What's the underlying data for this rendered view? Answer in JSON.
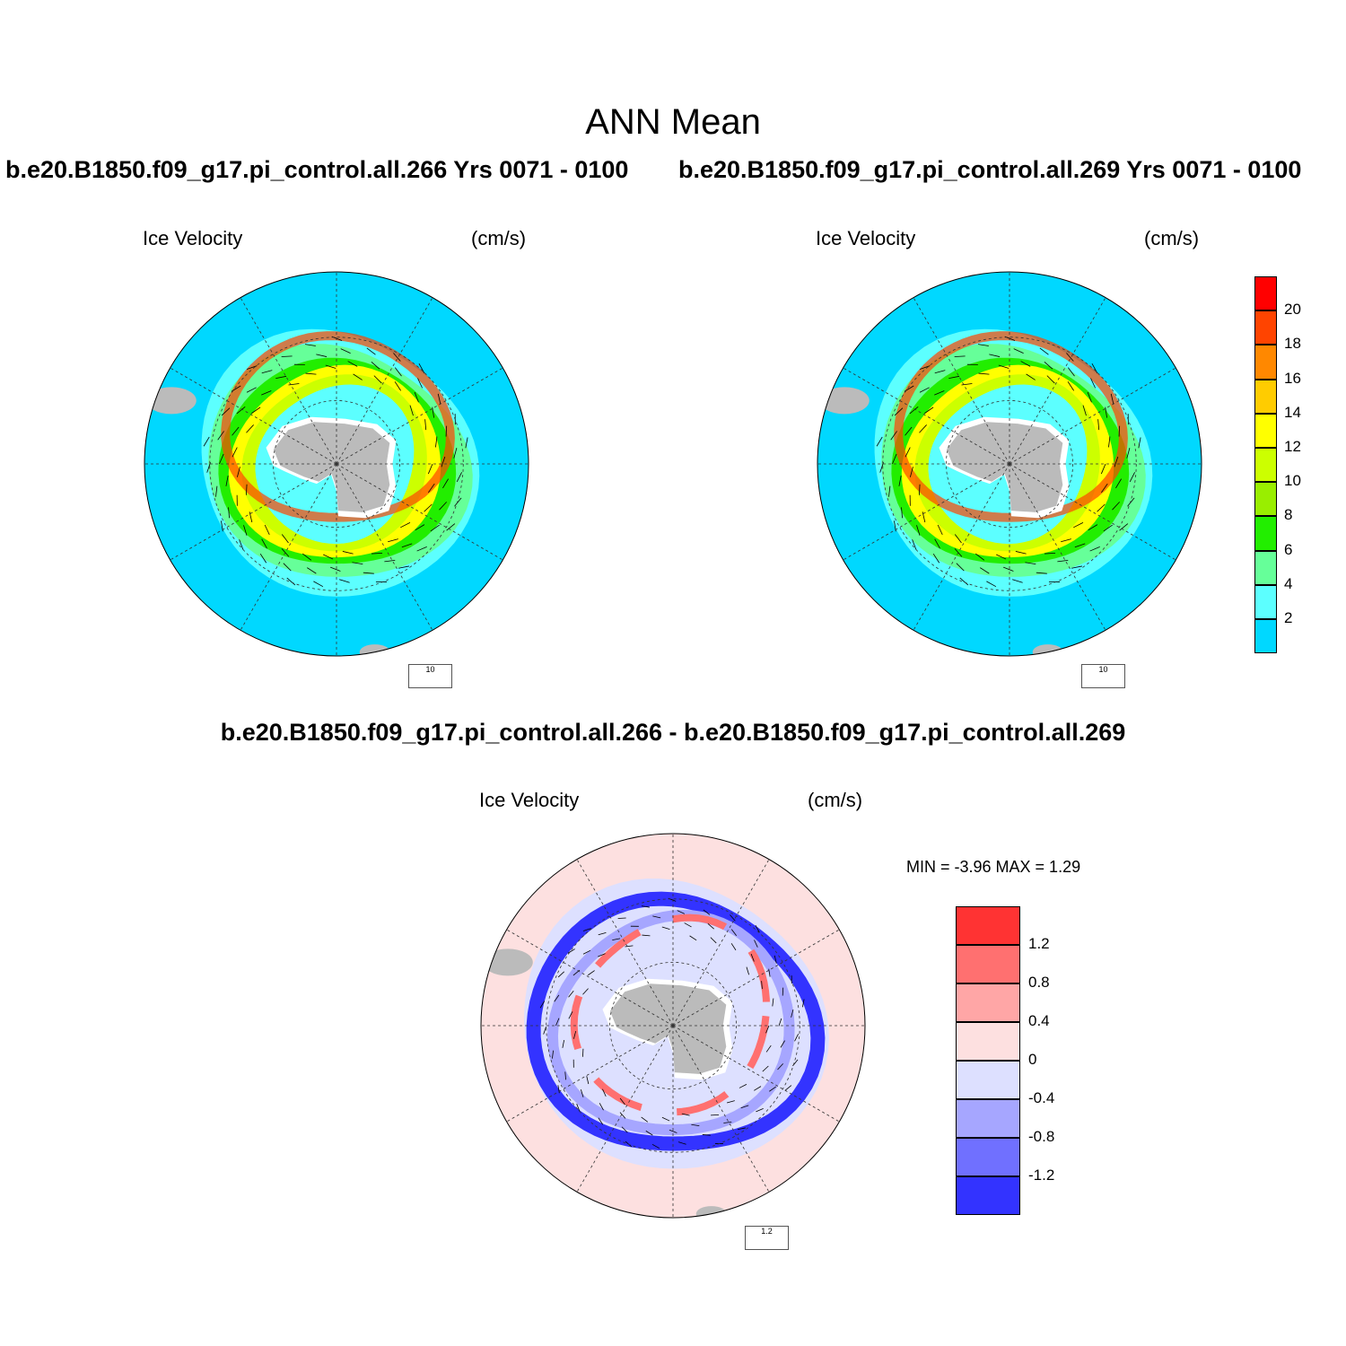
{
  "main_title": "ANN Mean",
  "case_left": "b.e20.B1850.f09_g17.pi_control.all.266  Yrs 0071 - 0100",
  "case_right": "b.e20.B1850.f09_g17.pi_control.all.269  Yrs 0071 - 0100",
  "diff_title": "b.e20.B1850.f09_g17.pi_control.all.266 - b.e20.B1850.f09_g17.pi_control.all.269",
  "panels": {
    "left": {
      "variable": "Ice Velocity",
      "units": "(cm/s)",
      "ref_vector": "10"
    },
    "right": {
      "variable": "Ice Velocity",
      "units": "(cm/s)",
      "ref_vector": "10"
    },
    "diff": {
      "variable": "Ice Velocity",
      "units": "(cm/s)",
      "ref_vector": "1.2",
      "minmax": "MIN =  -3.96 MAX =   1.29"
    }
  },
  "colorbar_speed": {
    "labels": [
      "2",
      "4",
      "6",
      "8",
      "10",
      "12",
      "14",
      "16",
      "18",
      "20"
    ],
    "colors": [
      "#00d8ff",
      "#5cffff",
      "#66ff99",
      "#22ee00",
      "#99ee00",
      "#ccff00",
      "#ffff00",
      "#ffcc00",
      "#ff8800",
      "#ff4400",
      "#ff0000"
    ]
  },
  "colorbar_diff": {
    "labels": [
      "1.2",
      "0.8",
      "0.4",
      "0",
      "-0.4",
      "-0.8",
      "-1.2"
    ],
    "colors": [
      "#ff3333",
      "#ff7070",
      "#ffa6a6",
      "#fde0e0",
      "#dde0ff",
      "#a6a6ff",
      "#7070ff",
      "#3333ff"
    ]
  },
  "colors": {
    "ocean": "#00d8ff",
    "land": "#bbbbbb",
    "diff_background": "#fde0e0"
  }
}
